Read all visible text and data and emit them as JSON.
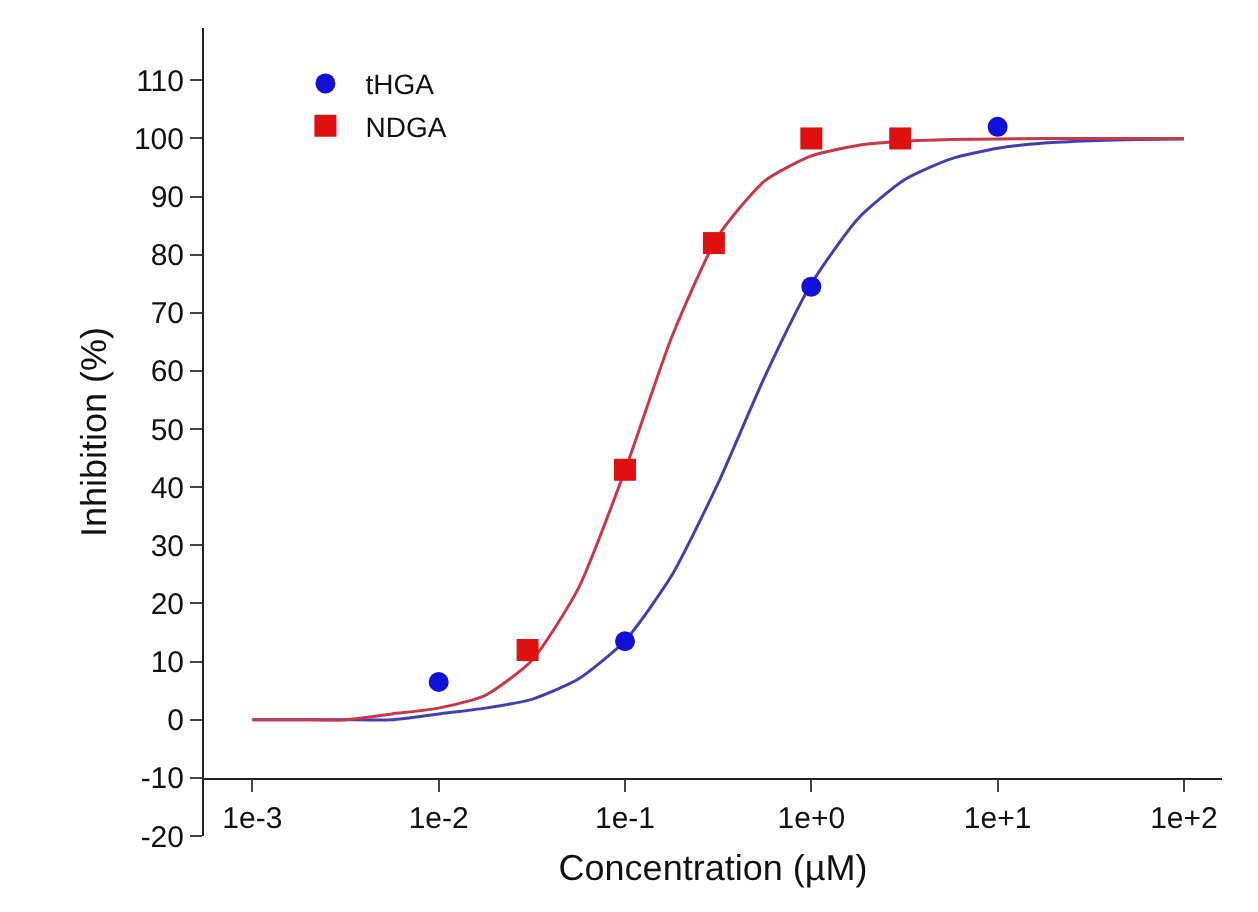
{
  "chart_data": {
    "type": "scatter",
    "xlabel": "Concentration (µM)",
    "ylabel": "Inhibition (%)",
    "log": "x",
    "xlim": [
      0.00055,
      160
    ],
    "xticks": [
      {
        "value": 0.001,
        "label": "1e-3"
      },
      {
        "value": 0.01,
        "label": "1e-2"
      },
      {
        "value": 0.1,
        "label": "1e-1"
      },
      {
        "value": 1,
        "label": "1e+0"
      },
      {
        "value": 10,
        "label": "1e+1"
      },
      {
        "value": 100,
        "label": "1e+2"
      }
    ],
    "ylim": [
      -20,
      119
    ],
    "yticks": [
      -20,
      -10,
      0,
      10,
      20,
      30,
      40,
      50,
      60,
      70,
      80,
      90,
      100,
      110
    ],
    "grid": false,
    "legend": "top left",
    "series": [
      {
        "name": "tHGA",
        "color": "#1010d8",
        "marker": "circle",
        "x": [
          0.01,
          0.1,
          1,
          10
        ],
        "values": [
          6.5,
          13.5,
          74.5,
          102
        ]
      },
      {
        "name": "NDGA",
        "color": "#e01010",
        "marker": "square",
        "x": [
          0.03,
          0.1,
          0.3,
          1,
          3
        ],
        "values": [
          12,
          43,
          82,
          100,
          100
        ]
      },
      {
        "type": "line",
        "color": "#4040b0",
        "marker": "none",
        "line_style": "solid",
        "x": [
          0.001,
          0.00178,
          0.00316,
          0.00562,
          0.01,
          0.0178,
          0.0316,
          0.0562,
          0.1,
          0.178,
          0.316,
          0.562,
          1,
          1.78,
          3.16,
          5.62,
          10,
          17.8,
          31.6,
          56.2,
          100
        ],
        "values": [
          0,
          0,
          0,
          0,
          1,
          2,
          3.5,
          7,
          13.6,
          24.8,
          40.7,
          59,
          75,
          86.2,
          92.9,
          96.5,
          98.3,
          99.2,
          99.6,
          99.8,
          99.9
        ]
      },
      {
        "type": "line",
        "color": "#c83848",
        "marker": "none",
        "line_style": "solid",
        "x": [
          0.001,
          0.00178,
          0.00316,
          0.00562,
          0.01,
          0.0178,
          0.0316,
          0.0562,
          0.1,
          0.178,
          0.316,
          0.562,
          1,
          1.78,
          3.16,
          5.62,
          10,
          17.8,
          31.6,
          56.2,
          100
        ],
        "values": [
          0,
          0,
          0,
          1,
          2,
          4.2,
          10.2,
          22.6,
          42.9,
          65.8,
          83.2,
          92.7,
          97.0,
          98.8,
          99.5,
          99.8,
          99.9,
          100,
          100,
          100,
          100
        ]
      }
    ]
  }
}
